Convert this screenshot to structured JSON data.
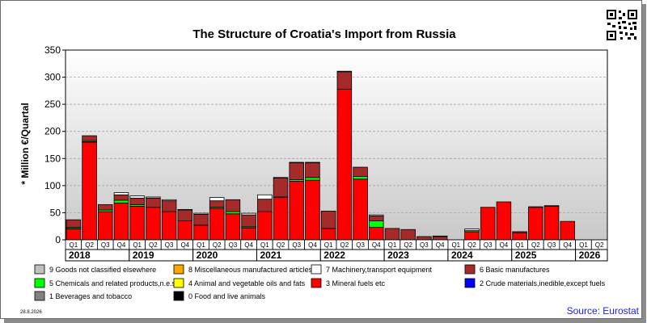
{
  "chart_data": {
    "type": "bar",
    "stacked": true,
    "title": "The Structure of Croatia's Import from Russia",
    "ylabel": "* Million €/Quartal",
    "ylim": [
      0,
      350
    ],
    "yticks": [
      0,
      50,
      100,
      150,
      200,
      250,
      300,
      350
    ],
    "grid": true,
    "legend_position": "bottom",
    "categories": [
      "Q1",
      "Q2",
      "Q3",
      "Q4",
      "Q1",
      "Q2",
      "Q3",
      "Q4",
      "Q1",
      "Q2",
      "Q3",
      "Q4",
      "Q1",
      "Q2",
      "Q3",
      "Q4",
      "Q1",
      "Q2",
      "Q3",
      "Q4",
      "Q1",
      "Q2",
      "Q3",
      "Q4",
      "Q1",
      "Q2",
      "Q3",
      "Q4",
      "Q1",
      "Q2",
      "Q3",
      "Q4",
      "Q1",
      "Q2"
    ],
    "years": [
      {
        "label": "2018",
        "start": 0,
        "count": 4
      },
      {
        "label": "2019",
        "start": 4,
        "count": 4
      },
      {
        "label": "2020",
        "start": 8,
        "count": 4
      },
      {
        "label": "2021",
        "start": 12,
        "count": 4
      },
      {
        "label": "2022",
        "start": 16,
        "count": 4
      },
      {
        "label": "2023",
        "start": 20,
        "count": 4
      },
      {
        "label": "2024",
        "start": 24,
        "count": 4
      },
      {
        "label": "2025",
        "start": 28,
        "count": 4
      },
      {
        "label": "2026",
        "start": 32,
        "count": 2
      }
    ],
    "series": [
      {
        "name": "0 Food and live animals",
        "color": "#000000",
        "values": [
          0,
          0,
          0,
          0,
          0,
          0,
          0,
          0,
          0,
          0,
          0,
          0,
          0,
          0,
          0,
          0,
          0,
          0,
          0,
          0,
          0,
          0,
          0,
          0,
          0,
          0,
          0,
          0,
          0,
          0,
          0,
          0,
          0,
          0
        ]
      },
      {
        "name": "1 Beverages and tobacco",
        "color": "#808080",
        "values": [
          0,
          0,
          0,
          0,
          0,
          0,
          0,
          0,
          0,
          0,
          0,
          0,
          0,
          0,
          0,
          0,
          0,
          0,
          0,
          0,
          0,
          0,
          0,
          0,
          0,
          0,
          0,
          0,
          0,
          0,
          0,
          0,
          0,
          0
        ]
      },
      {
        "name": "2 Crude materials,inedible,except fuels",
        "color": "#0000ff",
        "values": [
          0,
          0,
          0,
          0,
          0,
          0,
          0,
          0,
          0,
          0,
          0,
          0,
          0,
          0,
          0,
          0,
          0,
          0,
          0,
          0,
          0,
          0,
          0,
          0,
          0,
          0,
          0,
          0,
          0,
          0,
          0,
          0,
          0,
          0
        ]
      },
      {
        "name": "3 Mineral fuels etc",
        "color": "#ff0000",
        "values": [
          20,
          180,
          52,
          68,
          62,
          60,
          52,
          35,
          27,
          58,
          48,
          22,
          52,
          78,
          108,
          110,
          21,
          278,
          112,
          23,
          0,
          0,
          0,
          0,
          0,
          15,
          60,
          70,
          13,
          60,
          62,
          34,
          0,
          0
        ]
      },
      {
        "name": "4 Animal and vegetable oils and fats",
        "color": "#ffff00",
        "values": [
          1,
          1,
          0,
          0,
          0,
          0,
          0,
          0,
          0,
          0,
          0,
          0,
          0,
          0,
          0,
          0,
          0,
          0,
          0,
          0,
          0,
          0,
          0,
          0,
          0,
          0,
          0,
          0,
          0,
          0,
          0,
          0,
          0,
          0
        ]
      },
      {
        "name": "5 Chemicals and related products,n.e.s.",
        "color": "#00ff00",
        "values": [
          2,
          2,
          3,
          5,
          3,
          0,
          0,
          0,
          0,
          2,
          4,
          2,
          0,
          1,
          3,
          5,
          0,
          0,
          5,
          12,
          0,
          0,
          0,
          0,
          0,
          2,
          0,
          0,
          0,
          1,
          0,
          0,
          0,
          0
        ]
      },
      {
        "name": "6 Basic manufactures",
        "color": "#a52a2a",
        "values": [
          14,
          9,
          10,
          10,
          12,
          17,
          20,
          20,
          20,
          12,
          22,
          22,
          23,
          35,
          31,
          27,
          32,
          32,
          17,
          9,
          21,
          19,
          6,
          6,
          0,
          0,
          0,
          0,
          2,
          0,
          1,
          0,
          0,
          0
        ]
      },
      {
        "name": "7 Machinery,transport equipment",
        "color": "#ffffff",
        "values": [
          0,
          0,
          0,
          4,
          4,
          2,
          2,
          1,
          2,
          6,
          0,
          3,
          8,
          1,
          1,
          1,
          0,
          1,
          0,
          2,
          0,
          0,
          0,
          1,
          0,
          3,
          0,
          0,
          0,
          0,
          0,
          0,
          0,
          0
        ]
      },
      {
        "name": "8 Miscellaneous manufactured articles",
        "color": "#ffa500",
        "values": [
          0,
          0,
          0,
          0,
          0,
          0,
          0,
          0,
          0,
          0,
          0,
          0,
          0,
          0,
          0,
          0,
          0,
          0,
          0,
          0,
          0,
          0,
          0,
          0,
          0,
          0,
          0,
          0,
          0,
          0,
          0,
          0,
          0,
          0
        ]
      },
      {
        "name": "9 Goods not classified elsewhere",
        "color": "#c0c0c0",
        "values": [
          0,
          0,
          0,
          0,
          0,
          0,
          0,
          0,
          0,
          0,
          0,
          0,
          0,
          0,
          0,
          0,
          0,
          0,
          0,
          0,
          0,
          0,
          0,
          0,
          0,
          0,
          0,
          0,
          0,
          0,
          0,
          0,
          0,
          0
        ]
      }
    ],
    "legend_order": [
      9,
      8,
      7,
      6,
      5,
      4,
      3,
      2,
      1,
      0
    ]
  },
  "footer": {
    "date": "28.8.2026",
    "source": "Source: Eurostat"
  }
}
